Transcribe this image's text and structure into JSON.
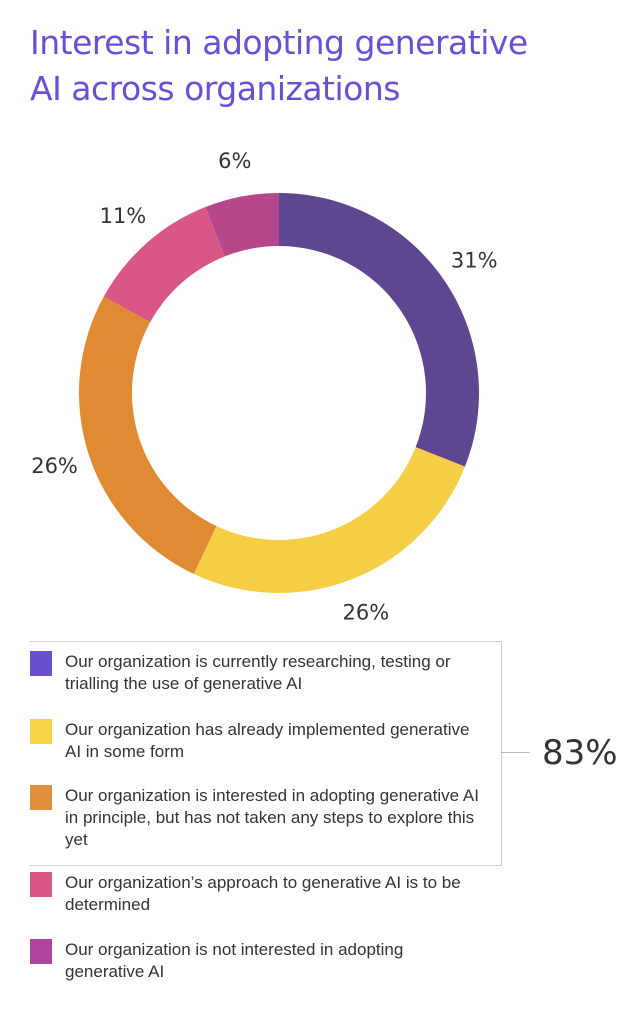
{
  "title_line1": "Interest in adopting generative",
  "title_line2": "AI across organizations",
  "chart_data": {
    "type": "pie",
    "donut": true,
    "title": "Interest in adopting generative AI across organizations",
    "slices": [
      {
        "label": "Our organization is currently researching, testing or trialling the use of generative AI",
        "value": 31,
        "display": "31%",
        "color": "#5d4790",
        "legend_color": "#6a4fcf"
      },
      {
        "label": "Our organization has already implemented generative AI in some form",
        "value": 26,
        "display": "26%",
        "color": "#f6ce46",
        "legend_color": "#f6d347"
      },
      {
        "label": "Our organization is interested in adopting generative AI in principle, but has not taken any steps to explore this yet",
        "value": 26,
        "display": "26%",
        "color": "#e08a33",
        "legend_color": "#e08f3f"
      },
      {
        "label": "Our organization’s approach to generative AI is to be determined",
        "value": 11,
        "display": "11%",
        "color": "#d85787",
        "legend_color": "#d85787"
      },
      {
        "label": "Our organization is not interested in adopting generative AI",
        "value": 6,
        "display": "6%",
        "color": "#b6478a",
        "legend_color": "#b0449a"
      }
    ],
    "legend_placement": "bottom",
    "group_total": {
      "label": "83%",
      "covers_slices": [
        0,
        1,
        2
      ]
    }
  }
}
